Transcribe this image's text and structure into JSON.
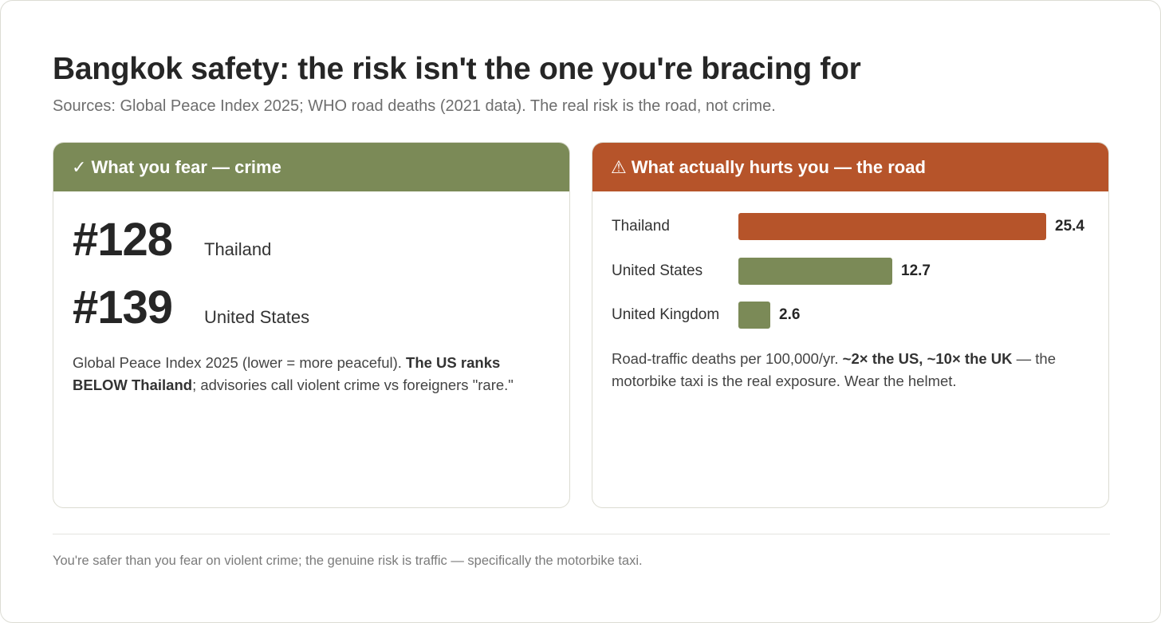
{
  "title": "Bangkok safety: the risk isn't the one you're bracing for",
  "subtitle": "Sources: Global Peace Index 2025; WHO road deaths (2021 data). The real risk is the road, not crime.",
  "left_card": {
    "icon": "checkmark-icon",
    "icon_glyph": "✓",
    "header": "What you fear — crime",
    "header_color": "#7b8a57",
    "ranks": [
      {
        "rank": "#128",
        "country": "Thailand"
      },
      {
        "rank": "#139",
        "country": "United States"
      }
    ],
    "note_parts": [
      "Global Peace Index 2025 (lower = more peaceful). ",
      "The US ranks BELOW Thailand",
      "; advisories call violent crime vs foreigners \"rare.\""
    ]
  },
  "right_card": {
    "icon": "warning-icon",
    "icon_glyph": "⚠",
    "header": "What actually hurts you — the road",
    "header_color": "#b6542a",
    "note_parts": [
      "Road-traffic deaths per 100,000/yr. ",
      "~2× the US, ~10× the UK",
      " — the motorbike taxi is the real exposure. Wear the helmet."
    ]
  },
  "chart_data": {
    "type": "bar",
    "orientation": "horizontal",
    "title": "",
    "xlabel": "",
    "ylabel": "",
    "categories": [
      "Thailand",
      "United States",
      "United Kingdom"
    ],
    "values": [
      25.4,
      12.7,
      2.6
    ],
    "value_labels": [
      "25.4",
      "12.7",
      "2.6"
    ],
    "colors": [
      "#b6542a",
      "#7b8a57",
      "#7b8a57"
    ],
    "xlim": [
      0,
      25.4
    ],
    "grid": false
  },
  "footer": "You're safer than you fear on violent crime; the genuine risk is traffic — specifically the motorbike taxi."
}
